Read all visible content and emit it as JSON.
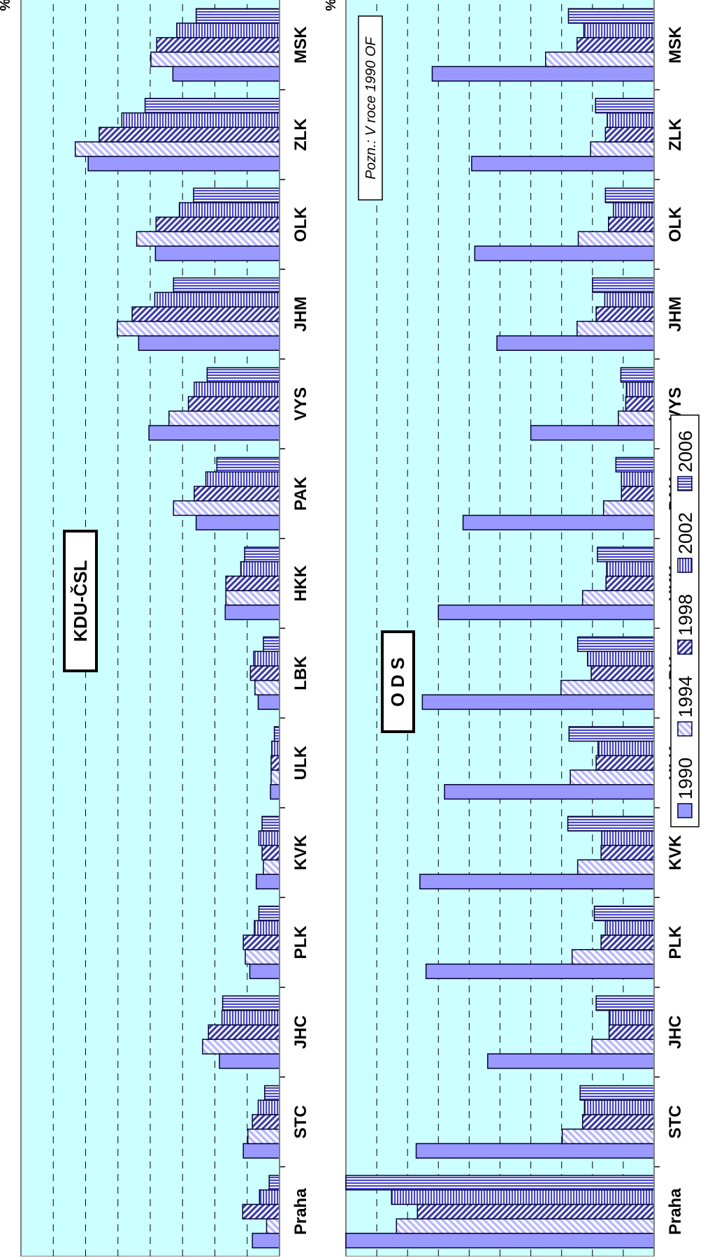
{
  "colors": {
    "plot_bg": "#ccffff",
    "bar_fill": "#9999ff",
    "bar_stroke": "#000033",
    "pattern_light": "#ccccff",
    "pattern_dark": "#3333aa"
  },
  "legend": {
    "items": [
      {
        "label": "1990",
        "pattern": "solid"
      },
      {
        "label": "1994",
        "pattern": "diag-light"
      },
      {
        "label": "1998",
        "pattern": "diag-dark"
      },
      {
        "label": "2002",
        "pattern": "horiz"
      },
      {
        "label": "2006",
        "pattern": "vert"
      }
    ]
  },
  "chart_data": [
    {
      "type": "bar",
      "orientation": "rotated",
      "title": "KDU-ČSL",
      "ylabel": "%",
      "ylim": [
        0,
        40
      ],
      "yticks": [
        0,
        5,
        10,
        15,
        20,
        25,
        30,
        35,
        40
      ],
      "grid": true,
      "categories": [
        "Praha",
        "STC",
        "JHC",
        "PLK",
        "KVK",
        "ULK",
        "LBK",
        "HKK",
        "PAK",
        "VYS",
        "JHM",
        "OLK",
        "ZLK",
        "MSK"
      ],
      "series": [
        {
          "name": "1990",
          "values": [
            4.2,
            5.6,
            9.3,
            4.6,
            3.6,
            1.4,
            3.3,
            8.4,
            12.9,
            20.2,
            21.8,
            19.2,
            29.6,
            16.5
          ]
        },
        {
          "name": "1994",
          "values": [
            2.0,
            4.9,
            11.9,
            5.3,
            2.5,
            1.3,
            3.8,
            8.3,
            16.4,
            17.1,
            25.1,
            22.1,
            31.6,
            19.9
          ]
        },
        {
          "name": "1998",
          "values": [
            5.7,
            4.2,
            11.0,
            5.6,
            2.7,
            1.3,
            4.5,
            8.3,
            13.2,
            14.1,
            22.8,
            19.1,
            27.9,
            19.0
          ]
        },
        {
          "name": "2002",
          "values": [
            3.1,
            3.3,
            8.9,
            3.9,
            3.2,
            1.2,
            4.0,
            6.0,
            11.4,
            13.2,
            19.3,
            15.5,
            24.4,
            15.9
          ]
        },
        {
          "name": "2006",
          "values": [
            1.6,
            2.3,
            8.8,
            3.2,
            2.7,
            0.8,
            2.5,
            5.4,
            9.7,
            11.2,
            16.4,
            13.3,
            20.8,
            12.9
          ]
        }
      ]
    },
    {
      "type": "bar",
      "orientation": "rotated",
      "title": "O D S",
      "ylabel": "%",
      "ylim": [
        0,
        50
      ],
      "yticks": [
        0,
        5,
        10,
        15,
        20,
        25,
        30,
        35,
        40,
        45,
        50
      ],
      "grid": true,
      "annotation": "Pozn.: V roce 1990 OF",
      "categories": [
        "Praha",
        "STC",
        "JHC",
        "PLK",
        "KVK",
        "ULK",
        "LBK",
        "HKK",
        "PAK",
        "VYS",
        "JHM",
        "OLK",
        "ZLK",
        "MSK"
      ],
      "series": [
        {
          "name": "1990",
          "values": [
            50.0,
            38.6,
            27.0,
            37.0,
            38.0,
            34.0,
            37.6,
            35.0,
            31.0,
            20.0,
            25.5,
            29.1,
            29.6,
            36.0
          ]
        },
        {
          "name": "1994",
          "values": [
            41.8,
            14.9,
            10.1,
            13.3,
            12.4,
            13.6,
            15.1,
            11.6,
            8.2,
            5.8,
            12.5,
            12.3,
            10.3,
            17.6
          ]
        },
        {
          "name": "1998",
          "values": [
            38.4,
            11.6,
            7.3,
            8.6,
            8.6,
            9.4,
            10.2,
            7.8,
            5.3,
            4.6,
            9.4,
            7.4,
            7.9,
            12.5
          ]
        },
        {
          "name": "2002",
          "values": [
            42.6,
            11.3,
            7.3,
            7.9,
            8.5,
            9.1,
            10.8,
            7.7,
            5.3,
            4.5,
            8.0,
            6.6,
            7.6,
            11.4
          ]
        },
        {
          "name": "2006",
          "values": [
            50.0,
            12.0,
            9.4,
            9.7,
            14.0,
            13.8,
            12.4,
            9.2,
            6.2,
            5.4,
            10.0,
            7.9,
            9.5,
            13.9
          ]
        }
      ]
    }
  ]
}
